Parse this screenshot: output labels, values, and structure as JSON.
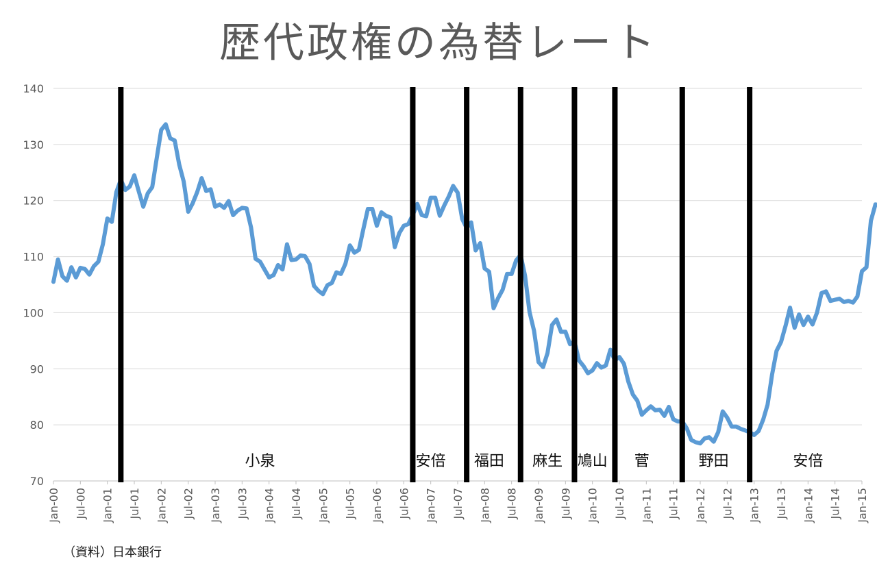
{
  "chart_data": {
    "type": "line",
    "title": "歴代政権の為替レート",
    "source_note": "（資料）日本銀行",
    "xlabel": "",
    "ylabel": "",
    "ylim": [
      70,
      140
    ],
    "yticks": [
      70,
      80,
      90,
      100,
      110,
      120,
      130,
      140
    ],
    "grid": "horizontal",
    "line_color": "#5b9bd5",
    "x_tick_labels": [
      "Jan-00",
      "Jul-00",
      "Jan-01",
      "Jul-01",
      "Jan-02",
      "Jul-02",
      "Jan-03",
      "Jul-03",
      "Jan-04",
      "Jul-04",
      "Jan-05",
      "Jul-05",
      "Jan-06",
      "Jul-06",
      "Jan-07",
      "Jul-07",
      "Jan-08",
      "Jul-08",
      "Jan-09",
      "Jul-09",
      "Jan-10",
      "Jul-10",
      "Jan-11",
      "Jul-11",
      "Jan-12",
      "Jul-12",
      "Jan-13",
      "Jul-13",
      "Jan-14",
      "Jul-14",
      "Jan-15"
    ],
    "x_start": "2000-01",
    "series": [
      {
        "values": [
          105.5,
          109.5,
          106.5,
          105.7,
          108.1,
          106.3,
          108,
          107.8,
          106.8,
          108.3,
          109.1,
          112.2,
          116.8,
          116.2,
          121.5,
          123.7,
          121.9,
          122.5,
          124.5,
          121.6,
          118.9,
          121.3,
          122.4,
          127.6,
          132.6,
          133.6,
          131.1,
          130.7,
          126.4,
          123.4,
          118,
          119.5,
          121.5,
          124,
          121.7,
          122,
          118.9,
          119.3,
          118.7,
          119.9,
          117.4,
          118.2,
          118.7,
          118.6,
          115.2,
          109.6,
          109.1,
          107.7,
          106.3,
          106.7,
          108.5,
          107.7,
          112.2,
          109.4,
          109.5,
          110.2,
          110.1,
          108.7,
          104.8,
          103.9,
          103.3,
          104.9,
          105.3,
          107.2,
          106.9,
          108.7,
          112,
          110.7,
          111.2,
          114.9,
          118.5,
          118.5,
          115.5,
          117.9,
          117.3,
          117,
          111.7,
          114.2,
          115.5,
          115.8,
          117.4,
          119.4,
          117.4,
          117.2,
          120.5,
          120.5,
          117.3,
          119.1,
          120.7,
          122.6,
          121.4,
          116.7,
          115.1,
          116.1,
          111.1,
          112.4,
          107.9,
          107.3,
          100.8,
          102.6,
          104.1,
          106.9,
          106.9,
          109.3,
          110.3,
          106.6,
          100.1,
          96.8,
          91.2,
          90.3,
          92.8,
          97.8,
          98.8,
          96.6,
          96.6,
          94.4,
          94.9,
          91.5,
          90.5,
          89.2,
          89.7,
          91,
          90.2,
          90.6,
          93.4,
          91.5,
          92.1,
          90.9,
          87.7,
          85.4,
          84.3,
          81.8,
          82.6,
          83.3,
          82.6,
          82.7,
          81.6,
          83.2,
          81,
          80.6,
          80.6,
          79.4,
          77.3,
          76.9,
          76.7,
          77.6,
          77.8,
          77,
          78.7,
          82.4,
          81.3,
          79.7,
          79.7,
          79.3,
          79,
          78.7,
          78.2,
          78.9,
          80.9,
          83.6,
          89,
          93.2,
          94.8,
          97.7,
          100.9,
          97.3,
          99.7,
          97.8,
          99.3,
          97.9,
          100,
          103.5,
          103.8,
          102.1,
          102.3,
          102.5,
          101.9,
          102.1,
          101.8,
          102.9,
          107.4,
          108.1,
          116.4,
          119.3,
          119.2
        ]
      }
    ],
    "era_boundaries": [
      "2001-04",
      "2006-09",
      "2007-09",
      "2008-09",
      "2009-09",
      "2010-06",
      "2011-09",
      "2012-12"
    ],
    "eras": [
      {
        "label": "小泉",
        "month": "2003-11"
      },
      {
        "label": "安倍",
        "month": "2007-01"
      },
      {
        "label": "福田",
        "month": "2008-02"
      },
      {
        "label": "麻生",
        "month": "2009-03"
      },
      {
        "label": "鳩山",
        "month": "2010-01"
      },
      {
        "label": "菅",
        "month": "2010-12"
      },
      {
        "label": "野田",
        "month": "2012-04"
      },
      {
        "label": "安倍",
        "month": "2014-01"
      }
    ]
  }
}
